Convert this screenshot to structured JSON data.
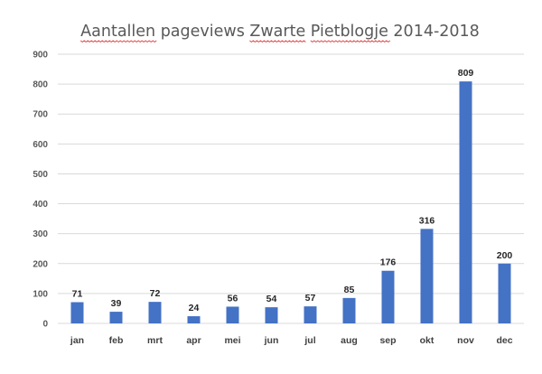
{
  "chart_data": {
    "type": "bar",
    "title": "Aantallen pageviews Zwarte Pietblogje 2014-2018",
    "spellcheck_underlined_words": [
      "Aantallen",
      "Zwarte",
      "Pietblogje"
    ],
    "categories": [
      "jan",
      "feb",
      "mrt",
      "apr",
      "mei",
      "jun",
      "jul",
      "aug",
      "sep",
      "okt",
      "nov",
      "dec"
    ],
    "values": [
      71,
      39,
      72,
      24,
      56,
      54,
      57,
      85,
      176,
      316,
      809,
      200
    ],
    "xlabel": "",
    "ylabel": "",
    "ylim": [
      0,
      900
    ],
    "yticks": [
      0,
      100,
      200,
      300,
      400,
      500,
      600,
      700,
      800,
      900
    ],
    "grid": true,
    "legend": "none",
    "colors": {
      "bar": "#4472C4",
      "grid": "#D9D9D9",
      "text": "#595959",
      "spellcheck": "#E03030"
    }
  }
}
